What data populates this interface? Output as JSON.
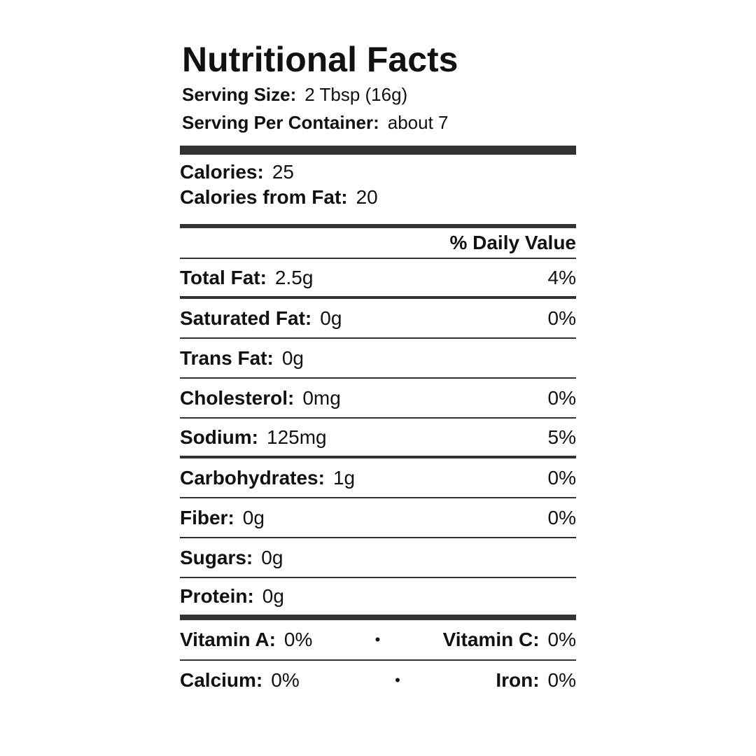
{
  "title": "Nutritional Facts",
  "serving": [
    {
      "label": "Serving Size:",
      "value": "2 Tbsp (16g)"
    },
    {
      "label": "Serving Per Container:",
      "value": "about 7"
    }
  ],
  "calories": [
    {
      "label": "Calories:",
      "value": "25"
    },
    {
      "label": "Calories from Fat:",
      "value": "20"
    }
  ],
  "daily_value_header": "% Daily Value",
  "nutrients": [
    {
      "label": "Total Fat:",
      "amount": "2.5g",
      "dv": "4%"
    },
    {
      "label": "Saturated Fat:",
      "amount": "0g",
      "dv": "0%"
    },
    {
      "label": "Trans Fat:",
      "amount": "0g"
    },
    {
      "label": "Cholesterol:",
      "amount": "0mg",
      "dv": "0%"
    },
    {
      "label": "Sodium:",
      "amount": "125mg",
      "dv": "5%"
    },
    {
      "label": "Carbohydrates:",
      "amount": "1g",
      "dv": "0%"
    },
    {
      "label": "Fiber:",
      "amount": "0g",
      "dv": "0%"
    },
    {
      "label": "Sugars:",
      "amount": "0g"
    },
    {
      "label": "Protein:",
      "amount": "0g"
    }
  ],
  "vitamins": [
    {
      "left_label": "Vitamin A:",
      "left_value": "0%",
      "separator": "•",
      "right_label": "Vitamin C:",
      "right_value": "0%"
    },
    {
      "left_label": "Calcium:",
      "left_value": "0%",
      "separator": "•",
      "right_label": "Iron:",
      "right_value": "0%"
    }
  ]
}
